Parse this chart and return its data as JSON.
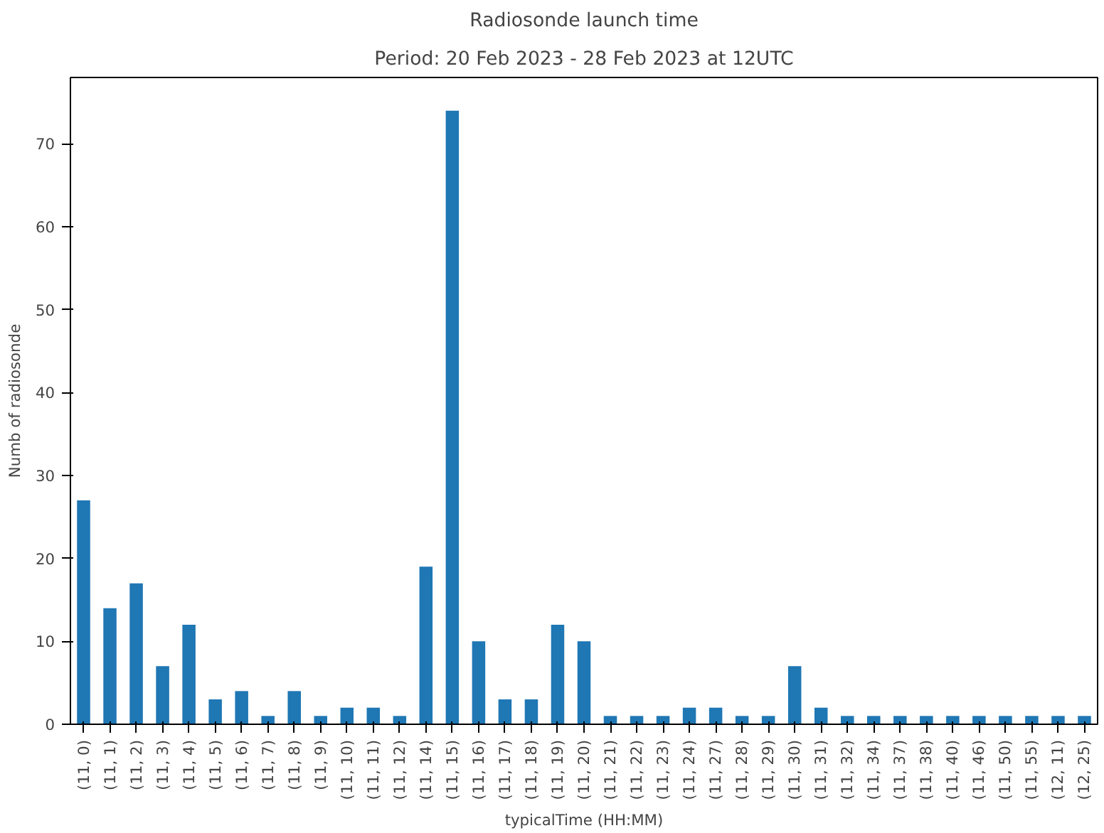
{
  "chart_data": {
    "type": "bar",
    "title": "Radiosonde launch time",
    "subtitle": "Period: 20 Feb 2023 - 28 Feb 2023 at 12UTC",
    "xlabel": "typicalTime (HH:MM)",
    "ylabel": "Numb of radiosonde",
    "categories": [
      "(11, 0)",
      "(11, 1)",
      "(11, 2)",
      "(11, 3)",
      "(11, 4)",
      "(11, 5)",
      "(11, 6)",
      "(11, 7)",
      "(11, 8)",
      "(11, 9)",
      "(11, 10)",
      "(11, 11)",
      "(11, 12)",
      "(11, 14)",
      "(11, 15)",
      "(11, 16)",
      "(11, 17)",
      "(11, 18)",
      "(11, 19)",
      "(11, 20)",
      "(11, 21)",
      "(11, 22)",
      "(11, 23)",
      "(11, 24)",
      "(11, 27)",
      "(11, 28)",
      "(11, 29)",
      "(11, 30)",
      "(11, 31)",
      "(11, 32)",
      "(11, 34)",
      "(11, 37)",
      "(11, 38)",
      "(11, 40)",
      "(11, 46)",
      "(11, 50)",
      "(11, 55)",
      "(12, 11)",
      "(12, 25)"
    ],
    "values": [
      27,
      14,
      17,
      7,
      12,
      3,
      4,
      1,
      4,
      1,
      2,
      2,
      1,
      19,
      74,
      10,
      3,
      3,
      12,
      10,
      1,
      1,
      1,
      2,
      2,
      1,
      1,
      7,
      2,
      1,
      1,
      1,
      1,
      1,
      1,
      1,
      1,
      1,
      1
    ],
    "color": "#1f77b4",
    "ylim": [
      0,
      78
    ],
    "yticks": [
      0,
      10,
      20,
      30,
      40,
      50,
      60,
      70
    ],
    "grid": false
  }
}
